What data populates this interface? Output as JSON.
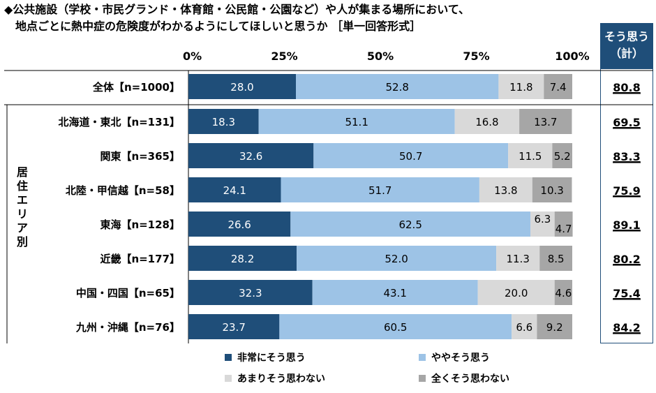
{
  "title_line1": "◆公共施設（学校・市民グランド・体育館・公民館・公園など）や人が集まる場所において、",
  "title_line2": "地点ごとに熱中症の危険度がわかるようにしてほしいと思うか ［単一回答形式］",
  "summary_header_line1": "そう思う",
  "summary_header_line2": "（計）",
  "group_label": "居住エリア別",
  "colors": {
    "very": "#1f4e79",
    "somewhat": "#9dc3e6",
    "not_much": "#d9d9d9",
    "not_at_all": "#a6a6a6",
    "summary_box": "#1f4e79"
  },
  "chart_data": {
    "type": "bar",
    "orientation": "horizontal",
    "stacked": true,
    "percent": true,
    "xlim": [
      0,
      100
    ],
    "x_ticks": [
      "0%",
      "25%",
      "50%",
      "75%",
      "100%"
    ],
    "categories": [
      "全体【n=1000】",
      "北海道・東北【n=131】",
      "関東【n=365】",
      "北陸・甲信越【n=58】",
      "東海【n=128】",
      "近畿【n=177】",
      "中国・四国【n=65】",
      "九州・沖縄【n=76】"
    ],
    "series": [
      {
        "name": "非常にそう思う",
        "values": [
          28.0,
          18.3,
          32.6,
          24.1,
          26.6,
          28.2,
          32.3,
          23.7
        ]
      },
      {
        "name": "ややそう思う",
        "values": [
          52.8,
          51.1,
          50.7,
          51.7,
          62.5,
          52.0,
          43.1,
          60.5
        ]
      },
      {
        "name": "あまりそう思わない",
        "values": [
          11.8,
          16.8,
          11.5,
          13.8,
          6.3,
          11.3,
          20.0,
          6.6
        ]
      },
      {
        "name": "全くそう思わない",
        "values": [
          7.4,
          13.7,
          5.2,
          10.3,
          4.7,
          8.5,
          4.6,
          9.2
        ]
      }
    ],
    "summary_values": [
      "80.8",
      "69.5",
      "83.3",
      "75.9",
      "89.1",
      "80.2",
      "75.4",
      "84.2"
    ]
  }
}
